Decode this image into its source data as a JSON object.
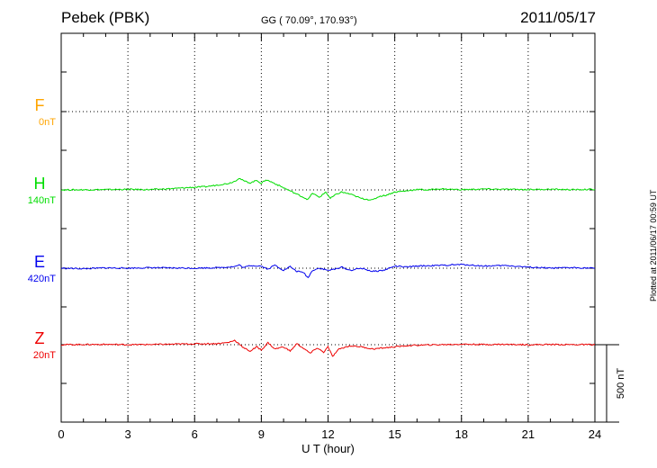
{
  "header": {
    "station": "Pebek (PBK)",
    "coords": "GG ( 70.09°, 170.93°)",
    "date": "2011/05/17"
  },
  "plotted_note": "Plotted at 2011/06/17 00:59 UT",
  "colors": {
    "F": "#ffa500",
    "H": "#00dd00",
    "E": "#0000ee",
    "Z": "#ee0000"
  },
  "chart_data": {
    "type": "line",
    "title": "",
    "xlabel": "U T (hour)",
    "xlim": [
      0,
      24
    ],
    "xticks": [
      "0",
      "3",
      "6",
      "9",
      "12",
      "15",
      "18",
      "21",
      "24"
    ],
    "scale_bar_label": "500 nT",
    "scale_bar_nT": 500,
    "components": [
      {
        "name": "F",
        "baseline_label": "0nT",
        "color": "#ffa500",
        "offset_nT": 0,
        "values": []
      },
      {
        "name": "H",
        "baseline_label": "140nT",
        "color": "#00dd00",
        "offset_nT": 0,
        "x": [
          0,
          1,
          2,
          3,
          4,
          5,
          6,
          6.5,
          7,
          7.5,
          7.8,
          8,
          8.2,
          8.5,
          8.8,
          9,
          9.2,
          9.5,
          9.8,
          10,
          10.3,
          10.6,
          10.9,
          11.1,
          11.3,
          11.6,
          11.9,
          12.1,
          12.3,
          12.6,
          13,
          13.5,
          14,
          14.3,
          14.6,
          15,
          15.5,
          16,
          16.5,
          17,
          18,
          19,
          20,
          21,
          22,
          23,
          24
        ],
        "values": [
          0,
          1,
          3,
          5,
          3,
          12,
          25,
          30,
          45,
          60,
          80,
          110,
          85,
          65,
          90,
          60,
          95,
          70,
          40,
          20,
          -10,
          -40,
          -70,
          -90,
          -30,
          -70,
          -20,
          -80,
          -50,
          -20,
          -40,
          -80,
          -95,
          -60,
          -50,
          -20,
          -10,
          5,
          0,
          10,
          2,
          8,
          5,
          3,
          6,
          2,
          5
        ]
      },
      {
        "name": "E",
        "baseline_label": "420nT",
        "color": "#0000ee",
        "offset_nT": 0,
        "x": [
          0,
          1,
          2,
          3,
          4,
          5,
          6,
          7,
          7.8,
          8,
          8.2,
          8.5,
          9,
          9.3,
          9.6,
          10,
          10.3,
          10.6,
          10.9,
          11.1,
          11.3,
          11.6,
          12,
          12.3,
          12.6,
          13,
          13.5,
          14,
          14.5,
          15,
          15.5,
          16,
          17,
          18,
          19,
          20,
          21,
          22,
          23,
          24
        ],
        "values": [
          0,
          -5,
          3,
          0,
          5,
          2,
          0,
          5,
          15,
          30,
          5,
          25,
          20,
          -10,
          30,
          -20,
          15,
          -30,
          -40,
          -90,
          -20,
          0,
          -20,
          -10,
          10,
          -20,
          0,
          -30,
          -20,
          20,
          10,
          20,
          25,
          35,
          20,
          25,
          10,
          0,
          5,
          0
        ]
      },
      {
        "name": "Z",
        "baseline_label": "20nT",
        "color": "#ee0000",
        "offset_nT": 0,
        "x": [
          0,
          1,
          2,
          3,
          4,
          5,
          6,
          7,
          7.5,
          7.8,
          8,
          8.2,
          8.5,
          8.8,
          9,
          9.3,
          9.6,
          10,
          10.3,
          10.6,
          11,
          11.2,
          11.5,
          11.8,
          12,
          12.2,
          12.5,
          13,
          13.5,
          14,
          14.5,
          15,
          15.5,
          16,
          17,
          18,
          19,
          20,
          21,
          22,
          23,
          24
        ],
        "values": [
          0,
          2,
          3,
          0,
          2,
          5,
          8,
          10,
          20,
          40,
          10,
          -30,
          -60,
          -20,
          -50,
          20,
          -40,
          -20,
          -60,
          10,
          -50,
          -80,
          -30,
          -70,
          -20,
          -110,
          -40,
          -10,
          -20,
          -40,
          -30,
          -20,
          -10,
          -5,
          0,
          5,
          2,
          3,
          0,
          2,
          1,
          0
        ]
      }
    ]
  }
}
